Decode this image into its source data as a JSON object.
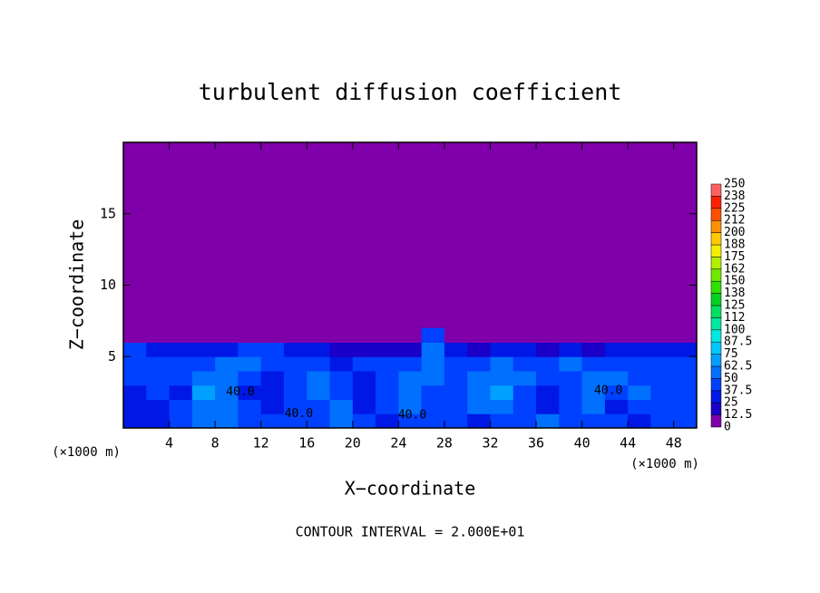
{
  "chart_data": {
    "type": "heatmap",
    "title": "turbulent diffusion coefficient",
    "x_label": "X−coordinate",
    "y_label": "Z−coordinate",
    "x_unit": "(×1000 m)",
    "y_unit": "(×1000 m)",
    "footer": "CONTOUR INTERVAL = 2.000E+01",
    "xlim": [
      0,
      50
    ],
    "xticks": [
      4,
      8,
      12,
      16,
      20,
      24,
      28,
      32,
      36,
      40,
      44,
      48
    ],
    "ylim": [
      0,
      20
    ],
    "yticks": [
      5,
      10,
      15
    ],
    "background_color": "#7f00aa",
    "x": [
      1,
      3,
      5,
      7,
      9,
      11,
      13,
      15,
      17,
      19,
      21,
      23,
      25,
      27,
      29,
      31,
      33,
      35,
      37,
      39,
      41,
      43,
      45,
      47,
      49
    ],
    "z": [
      0.5,
      1.5,
      2.5,
      3.5,
      4.5,
      5.5,
      6.5
    ],
    "values": [
      [
        30,
        25,
        40,
        50,
        55,
        40,
        45,
        40,
        45,
        50,
        40,
        35,
        40,
        45,
        40,
        35,
        40,
        45,
        50,
        40,
        45,
        40,
        35,
        45,
        40
      ],
      [
        25,
        35,
        40,
        60,
        55,
        40,
        35,
        40,
        45,
        50,
        35,
        40,
        50,
        40,
        45,
        50,
        60,
        40,
        35,
        40,
        55,
        35,
        40,
        45,
        40
      ],
      [
        30,
        40,
        35,
        65,
        50,
        35,
        30,
        40,
        50,
        45,
        35,
        40,
        55,
        45,
        40,
        55,
        65,
        40,
        35,
        45,
        60,
        40,
        50,
        40,
        45
      ],
      [
        40,
        45,
        40,
        55,
        60,
        40,
        35,
        45,
        50,
        40,
        35,
        45,
        55,
        50,
        45,
        50,
        60,
        50,
        40,
        45,
        55,
        50,
        45,
        40,
        40
      ],
      [
        45,
        40,
        45,
        40,
        55,
        50,
        40,
        45,
        40,
        35,
        40,
        40,
        45,
        50,
        45,
        40,
        50,
        45,
        40,
        50,
        45,
        40,
        45,
        40,
        45
      ],
      [
        40,
        35,
        30,
        25,
        30,
        45,
        40,
        30,
        25,
        20,
        15,
        12.5,
        20,
        55,
        25,
        12.5,
        30,
        25,
        12.5,
        25,
        20,
        25,
        30,
        25,
        30
      ],
      [
        0,
        0,
        0,
        0,
        0,
        0,
        0,
        0,
        0,
        0,
        0,
        0,
        0,
        40,
        0,
        0,
        0,
        0,
        0,
        0,
        0,
        0,
        0,
        0,
        0
      ]
    ],
    "levels": [
      0,
      12.5,
      25,
      37.5,
      50,
      62.5,
      75,
      87.5,
      100,
      {
        "value": 112.5,
        "label": "112"
      },
      125,
      {
        "value": 137.5,
        "label": "138"
      },
      150,
      {
        "value": 162.5,
        "label": "162"
      },
      175,
      {
        "value": 187.5,
        "label": "188"
      },
      200,
      {
        "value": 212.5,
        "label": "212"
      },
      225,
      {
        "value": 237.5,
        "label": "238"
      },
      250
    ],
    "level_colors": [
      "#7f00aa",
      "#1a00c8",
      "#0018e6",
      "#0040ff",
      "#0070ff",
      "#00a0ff",
      "#00c8ff",
      "#00e8e0",
      "#00e8a0",
      "#00e060",
      "#00d020",
      "#30e000",
      "#70e800",
      "#b0f000",
      "#f0f000",
      "#ffc800",
      "#ff9000",
      "#ff5000",
      "#ff2000",
      "#ff6060"
    ],
    "contour_labels": [
      {
        "text": "40.0",
        "x": 15.3,
        "z": 1.0
      },
      {
        "text": "40.0",
        "x": 25.2,
        "z": 0.9
      },
      {
        "text": "40.0",
        "x": 10.2,
        "z": 2.5
      },
      {
        "text": "40.0",
        "x": 42.3,
        "z": 2.6
      }
    ]
  }
}
